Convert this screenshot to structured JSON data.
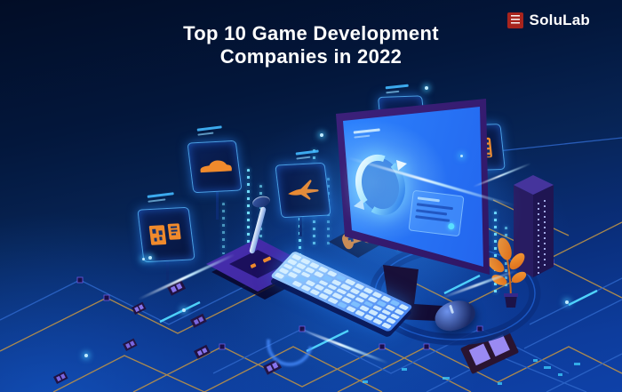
{
  "header": {
    "title_line1": "Top 10 Game Development",
    "title_line2": "Companies in 2022"
  },
  "brand": {
    "name": "SoluLab"
  },
  "colors": {
    "background_top": "#020d26",
    "background_bottom": "#0e41a8",
    "accent_orange": "#f08a2c",
    "screen_blue": "#2e86ff",
    "glow_cyan": "#3fd6ff",
    "logo_red": "#a8241d",
    "trace_gold": "#bb9147"
  },
  "illustration": {
    "floating_screens": [
      {
        "icon": "car-icon"
      },
      {
        "icon": "blueprint-icon"
      },
      {
        "icon": "airplane-icon"
      },
      {
        "icon": "music-note-icon"
      },
      {
        "icon": "film-icon"
      },
      {
        "icon": "gamepad-icon"
      }
    ],
    "devices": [
      "monitor",
      "keyboard",
      "mouse",
      "joystick",
      "server-tower",
      "plant-pot"
    ]
  }
}
